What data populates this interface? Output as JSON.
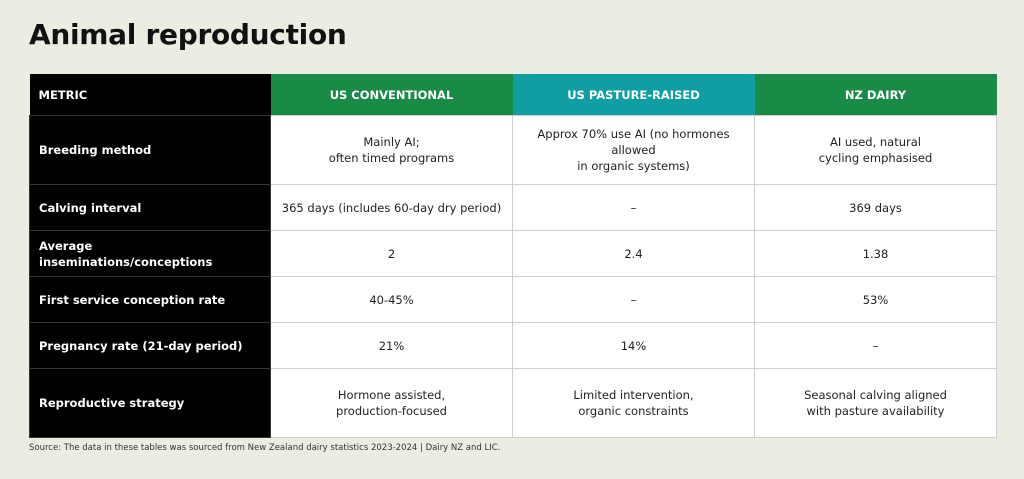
{
  "title": "Animal reproduction",
  "table": {
    "header": [
      "METRIC",
      "US CONVENTIONAL",
      "US PASTURE-RAISED",
      "NZ DAIRY"
    ],
    "rows": [
      [
        "Breeding method",
        "Mainly AI;\noften timed programs",
        "Approx 70% use AI (no hormones allowed\nin organic systems)",
        "AI used, natural\ncycling emphasised"
      ],
      [
        "Calving interval",
        "365 days (includes 60-day dry period)",
        "–",
        "369 days"
      ],
      [
        "Average inseminations/conceptions",
        "2",
        "2.4",
        "1.38"
      ],
      [
        "First service conception rate",
        "40-45%",
        "–",
        "53%"
      ],
      [
        "Pregnancy rate (21-day period)",
        "21%",
        "14%",
        "–"
      ],
      [
        "Reproductive strategy",
        "Hormone assisted,\nproduction-focused",
        "Limited intervention,\norganic constraints",
        "Seasonal calving aligned\nwith pasture availability"
      ]
    ]
  },
  "source": "Source: The data in these tables was sourced from New Zealand dairy statistics 2023-2024 | Dairy NZ and LIC."
}
